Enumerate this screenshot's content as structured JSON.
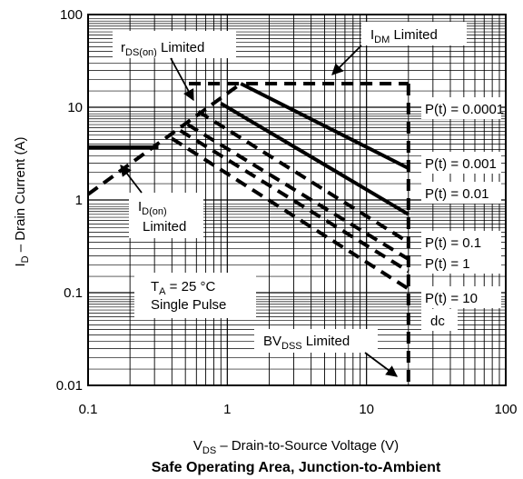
{
  "chart_data": {
    "type": "line",
    "title": "Safe Operating Area, Junction-to-Ambient",
    "xscale": "log",
    "yscale": "log",
    "xlim": [
      0.1,
      100
    ],
    "ylim": [
      0.01,
      100
    ],
    "grid": true,
    "xlabel": {
      "main": "V",
      "sub": "DS",
      "rest": " –  Drain-to-Source Voltage (V)"
    },
    "ylabel": {
      "main": "I",
      "sub": "D",
      "rest": " – Drain Current (A)"
    },
    "x_ticks": [
      {
        "value": 0.1,
        "label": "0.1"
      },
      {
        "value": 1,
        "label": "1"
      },
      {
        "value": 10,
        "label": "10"
      },
      {
        "value": 100,
        "label": "100"
      }
    ],
    "y_ticks": [
      {
        "value": 0.01,
        "label": "0.01"
      },
      {
        "value": 0.1,
        "label": "0.1"
      },
      {
        "value": 1,
        "label": "1"
      },
      {
        "value": 10,
        "label": "10"
      },
      {
        "value": 100,
        "label": "100"
      }
    ],
    "series": [
      {
        "name": "I_DM Limited",
        "style": "dash",
        "points": [
          [
            0.53,
            18
          ],
          [
            20,
            18
          ]
        ]
      },
      {
        "name": "r_DS(on) Limited",
        "style": "dash",
        "points": [
          [
            0.1,
            1.15
          ],
          [
            1.25,
            18
          ]
        ]
      },
      {
        "name": "I_D(on) Limited",
        "style": "solid",
        "points": [
          [
            0.1,
            3.7
          ],
          [
            0.32,
            3.7
          ]
        ]
      },
      {
        "name": "P(t) = 0.0001",
        "style": "solid",
        "points": [
          [
            1.25,
            18
          ],
          [
            20,
            2.2
          ]
        ]
      },
      {
        "name": "P(t) = 0.001",
        "style": "solid",
        "points": [
          [
            0.9,
            11
          ],
          [
            20,
            0.7
          ]
        ]
      },
      {
        "name": "P(t) = 0.01",
        "style": "dash",
        "points": [
          [
            0.62,
            9
          ],
          [
            20,
            0.35
          ]
        ]
      },
      {
        "name": "P(t) = 0.1",
        "style": "dash",
        "points": [
          [
            0.52,
            6.5
          ],
          [
            20,
            0.23
          ]
        ]
      },
      {
        "name": "P(t) = 1",
        "style": "dash",
        "points": [
          [
            0.46,
            5.6
          ],
          [
            20,
            0.17
          ]
        ]
      },
      {
        "name": "P(t) = 10",
        "style": "dash",
        "points": [
          [
            0.4,
            4.6
          ],
          [
            20,
            0.11
          ]
        ]
      },
      {
        "name": "BV_DSS Limited",
        "style": "dash",
        "points": [
          [
            20,
            18
          ],
          [
            20,
            0.01
          ]
        ]
      }
    ],
    "annotations": {
      "rds": {
        "main": "r",
        "sub": "DS(on)",
        "rest": " Limited"
      },
      "idm": {
        "main": "I",
        "sub": "DM",
        "rest": " Limited"
      },
      "idon": {
        "main": "I",
        "sub": "D(on)",
        "line2": "Limited"
      },
      "bvdss": {
        "main": "BV",
        "sub": "DSS",
        "rest": " Limited"
      },
      "ta": {
        "main": "T",
        "sub": "A",
        "rest": " = 25 °C",
        "line2": "Single Pulse"
      },
      "pt": [
        "P(t) = 0.0001",
        "P(t) = 0.001",
        "P(t) = 0.01",
        "P(t) = 0.1",
        "P(t) = 1",
        "P(t) = 10",
        "dc"
      ]
    }
  }
}
